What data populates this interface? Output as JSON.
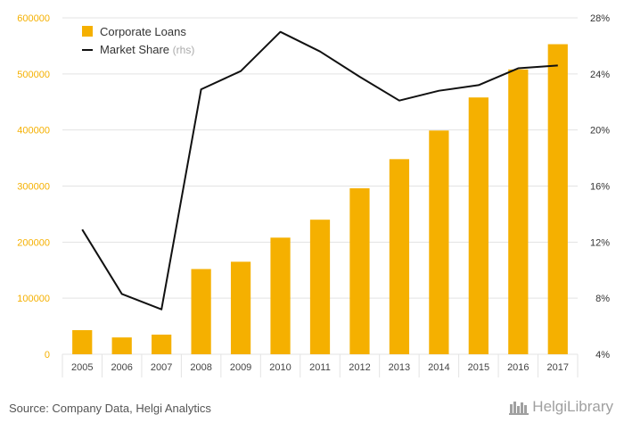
{
  "source": "Source: Company Data, Helgi Analytics",
  "brand": "HelgiLibrary",
  "chart_data": {
    "type": "bar",
    "categories": [
      "2005",
      "2006",
      "2007",
      "2008",
      "2009",
      "2010",
      "2011",
      "2012",
      "2013",
      "2014",
      "2015",
      "2016",
      "2017"
    ],
    "series": [
      {
        "name": "Corporate Loans",
        "type": "bar",
        "axis": "left",
        "color": "#f5b000",
        "values": [
          43000,
          30000,
          35000,
          152000,
          165000,
          208000,
          240000,
          296000,
          348000,
          399000,
          458000,
          508000,
          553000
        ]
      },
      {
        "name": "Market Share",
        "type": "line",
        "axis": "right",
        "color": "#111111",
        "values": [
          12.9,
          8.3,
          7.2,
          22.9,
          24.2,
          27.0,
          25.6,
          23.8,
          22.1,
          22.8,
          23.2,
          24.4,
          24.6
        ]
      }
    ],
    "legend_suffix_rhs": "(rhs)",
    "ylim_left": [
      0,
      600000
    ],
    "yticks_left": [
      "0",
      "100000",
      "200000",
      "300000",
      "400000",
      "500000",
      "600000"
    ],
    "ylim_right": [
      4,
      28
    ],
    "yticks_right": [
      "4%",
      "8%",
      "12%",
      "16%",
      "20%",
      "24%",
      "28%"
    ],
    "grid": true,
    "legend_position": "top-left"
  }
}
